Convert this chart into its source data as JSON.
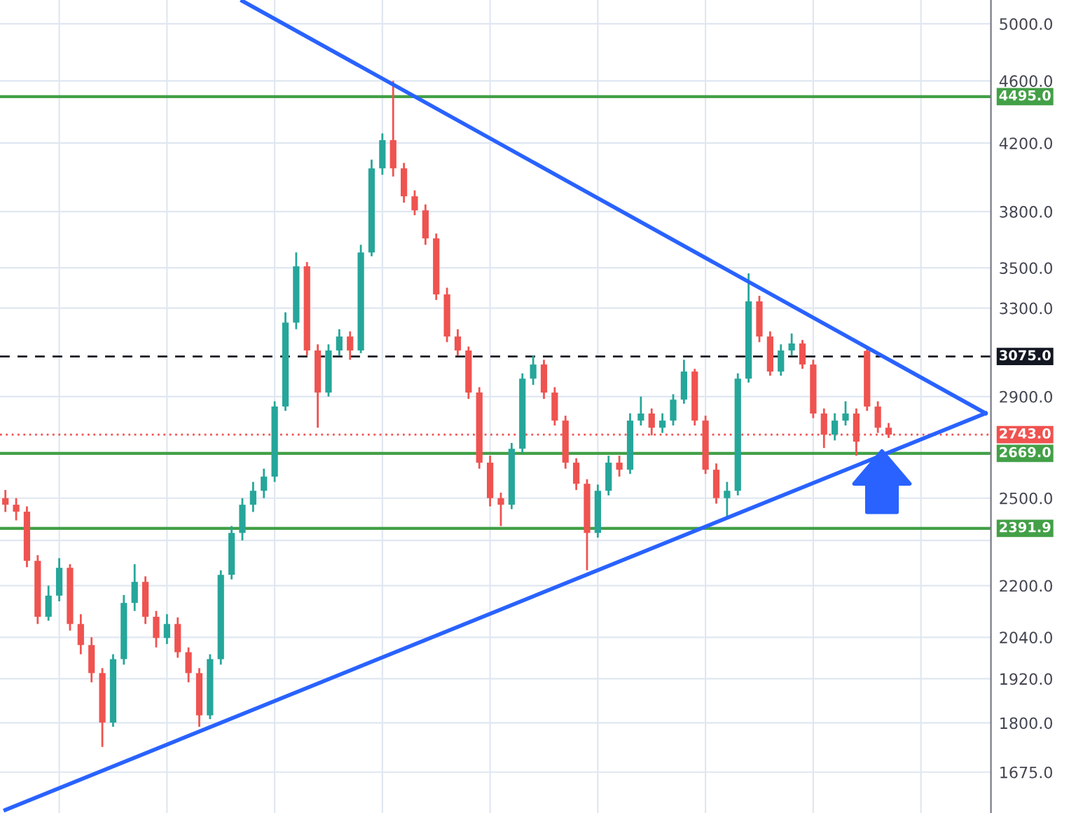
{
  "chart_data": {
    "type": "candlestick",
    "categories": [
      null,
      null,
      null,
      null,
      null,
      null,
      null,
      null,
      null,
      null,
      null,
      null,
      null,
      null,
      null,
      null,
      null,
      null,
      null,
      null,
      null,
      null,
      null,
      null,
      null,
      null,
      null,
      null,
      null,
      null,
      null,
      null,
      null,
      null,
      null,
      null,
      null,
      null,
      null,
      null,
      null,
      null,
      null,
      null,
      null,
      null,
      null,
      null,
      null,
      null,
      null,
      null,
      null,
      null,
      null,
      null,
      null,
      null,
      null,
      null,
      null,
      null,
      null,
      null,
      null,
      null,
      null,
      null,
      null,
      null,
      null,
      null,
      null,
      null,
      null,
      null,
      null,
      null,
      null,
      null,
      null,
      null,
      null,
      null,
      null,
      null,
      null,
      null,
      null,
      null,
      null,
      null
    ],
    "ohlc": [
      [
        2500,
        2530,
        2450,
        2476
      ],
      [
        2476,
        2500,
        2420,
        2451
      ],
      [
        2451,
        2470,
        2260,
        2281
      ],
      [
        2281,
        2300,
        2080,
        2102
      ],
      [
        2102,
        2200,
        2090,
        2168
      ],
      [
        2168,
        2290,
        2150,
        2258
      ],
      [
        2258,
        2270,
        2060,
        2080
      ],
      [
        2080,
        2110,
        1990,
        2017
      ],
      [
        2017,
        2040,
        1910,
        1936
      ],
      [
        1936,
        1950,
        1738,
        1801
      ],
      [
        1801,
        1990,
        1790,
        1976
      ],
      [
        1976,
        2170,
        1960,
        2145
      ],
      [
        2145,
        2270,
        2120,
        2212
      ],
      [
        2212,
        2230,
        2080,
        2102
      ],
      [
        2102,
        2120,
        2010,
        2038
      ],
      [
        2038,
        2110,
        2020,
        2080
      ],
      [
        2080,
        2100,
        1980,
        1996
      ],
      [
        1996,
        2010,
        1910,
        1936
      ],
      [
        1936,
        1950,
        1790,
        1820
      ],
      [
        1820,
        1990,
        1810,
        1976
      ],
      [
        1976,
        2250,
        1960,
        2235
      ],
      [
        2235,
        2400,
        2220,
        2376
      ],
      [
        2376,
        2500,
        2350,
        2476
      ],
      [
        2476,
        2560,
        2450,
        2527
      ],
      [
        2527,
        2610,
        2500,
        2580
      ],
      [
        2580,
        2880,
        2560,
        2858
      ],
      [
        2858,
        3280,
        2840,
        3231
      ],
      [
        3231,
        3580,
        3200,
        3508
      ],
      [
        3508,
        3530,
        3080,
        3102
      ],
      [
        3102,
        3130,
        2771,
        2917
      ],
      [
        2917,
        3130,
        2900,
        3102
      ],
      [
        3102,
        3200,
        3080,
        3166
      ],
      [
        3166,
        3190,
        3060,
        3102
      ],
      [
        3102,
        3620,
        3090,
        3580
      ],
      [
        3580,
        4100,
        3560,
        4048
      ],
      [
        4048,
        4260,
        4010,
        4218
      ],
      [
        4218,
        4600,
        4000,
        4048
      ],
      [
        4048,
        4080,
        3850,
        3886
      ],
      [
        3886,
        3920,
        3780,
        3807
      ],
      [
        3807,
        3840,
        3620,
        3654
      ],
      [
        3654,
        3680,
        3340,
        3367
      ],
      [
        3367,
        3400,
        3140,
        3166
      ],
      [
        3166,
        3200,
        3080,
        3102
      ],
      [
        3102,
        3120,
        2890,
        2917
      ],
      [
        2917,
        2940,
        2610,
        2633
      ],
      [
        2633,
        2660,
        2470,
        2500
      ],
      [
        2500,
        2520,
        2400,
        2476
      ],
      [
        2476,
        2710,
        2460,
        2687
      ],
      [
        2687,
        3000,
        2670,
        2977
      ],
      [
        2977,
        3080,
        2950,
        3039
      ],
      [
        3039,
        3060,
        2890,
        2917
      ],
      [
        2917,
        2940,
        2780,
        2800
      ],
      [
        2800,
        2820,
        2610,
        2633
      ],
      [
        2633,
        2650,
        2530,
        2553
      ],
      [
        2553,
        2570,
        2250,
        2376
      ],
      [
        2376,
        2550,
        2360,
        2527
      ],
      [
        2527,
        2660,
        2510,
        2633
      ],
      [
        2633,
        2660,
        2580,
        2606
      ],
      [
        2606,
        2830,
        2590,
        2800
      ],
      [
        2800,
        2900,
        2780,
        2829
      ],
      [
        2829,
        2850,
        2740,
        2771
      ],
      [
        2771,
        2830,
        2750,
        2800
      ],
      [
        2800,
        2910,
        2780,
        2887
      ],
      [
        2887,
        3060,
        2870,
        3008
      ],
      [
        3008,
        3020,
        2780,
        2800
      ],
      [
        2800,
        2820,
        2590,
        2606
      ],
      [
        2606,
        2630,
        2480,
        2500
      ],
      [
        2500,
        2560,
        2426,
        2527
      ],
      [
        2527,
        3000,
        2510,
        2977
      ],
      [
        2977,
        3472,
        2960,
        3333
      ],
      [
        3333,
        3360,
        3140,
        3166
      ],
      [
        3166,
        3190,
        2990,
        3008
      ],
      [
        3008,
        3130,
        2990,
        3102
      ],
      [
        3102,
        3180,
        3080,
        3134
      ],
      [
        3134,
        3150,
        3020,
        3039
      ],
      [
        3039,
        3060,
        2810,
        2829
      ],
      [
        2829,
        2850,
        2690,
        2743
      ],
      [
        2743,
        2830,
        2720,
        2800
      ],
      [
        2800,
        2880,
        2780,
        2829
      ],
      [
        2829,
        2850,
        2660,
        2715
      ],
      [
        3100,
        3122,
        2840,
        2858
      ],
      [
        2858,
        2880,
        2750,
        2771
      ],
      [
        2771,
        2790,
        2730,
        2743
      ],
      null,
      null,
      null,
      null,
      null,
      null,
      null,
      null,
      null
    ],
    "colors": [
      "#ef5350",
      "#ef5350",
      "#ef5350",
      "#ef5350",
      "#26a69a",
      "#26a69a",
      "#ef5350",
      "#ef5350",
      "#ef5350",
      "#ef5350",
      "#26a69a",
      "#26a69a",
      "#26a69a",
      "#ef5350",
      "#ef5350",
      "#26a69a",
      "#ef5350",
      "#ef5350",
      "#ef5350",
      "#26a69a",
      "#26a69a",
      "#26a69a",
      "#26a69a",
      "#26a69a",
      "#26a69a",
      "#26a69a",
      "#26a69a",
      "#26a69a",
      "#ef5350",
      "#ef5350",
      "#26a69a",
      "#26a69a",
      "#ef5350",
      "#26a69a",
      "#26a69a",
      "#26a69a",
      "#ef5350",
      "#ef5350",
      "#ef5350",
      "#ef5350",
      "#ef5350",
      "#ef5350",
      "#ef5350",
      "#ef5350",
      "#ef5350",
      "#ef5350",
      "#ef5350",
      "#26a69a",
      "#26a69a",
      "#26a69a",
      "#ef5350",
      "#ef5350",
      "#ef5350",
      "#ef5350",
      "#ef5350",
      "#26a69a",
      "#26a69a",
      "#ef5350",
      "#26a69a",
      "#26a69a",
      "#ef5350",
      "#26a69a",
      "#26a69a",
      "#26a69a",
      "#ef5350",
      "#ef5350",
      "#ef5350",
      "#26a69a",
      "#26a69a",
      "#26a69a",
      "#ef5350",
      "#ef5350",
      "#26a69a",
      "#26a69a",
      "#ef5350",
      "#ef5350",
      "#ef5350",
      "#26a69a",
      "#26a69a",
      "#ef5350",
      "#ef5350",
      "#ef5350",
      "#ef5350",
      null,
      null,
      null,
      null,
      null,
      null,
      null,
      null,
      null
    ],
    "series": [
      {
        "type": "line",
        "color": "#2962ff",
        "values": [
          null,
          null,
          null,
          null,
          null,
          null,
          null,
          null,
          null,
          null,
          null,
          null,
          null,
          null,
          null,
          null,
          null,
          null,
          null,
          null,
          null,
          null,
          5170,
          null,
          null,
          null,
          null,
          null,
          null,
          null,
          null,
          null,
          null,
          null,
          null,
          null,
          null,
          null,
          null,
          null,
          null,
          null,
          null,
          null,
          null,
          null,
          null,
          null,
          null,
          null,
          null,
          null,
          null,
          null,
          null,
          null,
          null,
          null,
          null,
          null,
          null,
          null,
          null,
          null,
          null,
          null,
          null,
          null,
          null,
          null,
          null,
          null,
          null,
          null,
          null,
          null,
          null,
          null,
          null,
          null,
          null,
          null,
          null,
          null,
          null,
          null,
          null,
          null,
          null,
          null,
          null,
          2830
        ]
      },
      {
        "type": "line",
        "color": "#2962ff",
        "values": [
          1585,
          null,
          null,
          null,
          null,
          null,
          null,
          null,
          null,
          null,
          null,
          null,
          null,
          null,
          null,
          null,
          null,
          null,
          null,
          null,
          null,
          null,
          null,
          null,
          null,
          null,
          null,
          null,
          null,
          null,
          null,
          null,
          null,
          null,
          null,
          null,
          null,
          null,
          null,
          null,
          null,
          null,
          null,
          null,
          null,
          null,
          null,
          null,
          null,
          null,
          null,
          null,
          null,
          null,
          null,
          null,
          null,
          null,
          null,
          null,
          null,
          null,
          null,
          null,
          null,
          null,
          null,
          null,
          null,
          null,
          null,
          null,
          null,
          null,
          null,
          null,
          null,
          null,
          null,
          null,
          null,
          null,
          null,
          null,
          null,
          null,
          null,
          null,
          null,
          null,
          null,
          2830
        ]
      }
    ],
    "ref_lines": [
      {
        "axis": "y",
        "value": 4495,
        "label": "4495.0",
        "color": "#43a047",
        "line_style": "solid"
      },
      {
        "axis": "y",
        "value": 3075,
        "label": "3075.0",
        "color": "#131722",
        "line_style": "dashed"
      },
      {
        "axis": "y",
        "value": 2743,
        "label": "2743.0",
        "color": "#ef5350",
        "line_style": "dotted"
      },
      {
        "axis": "y",
        "value": 2669,
        "label": "2669.0",
        "color": "#43a047",
        "line_style": "solid"
      },
      {
        "axis": "y",
        "value": 2391.9,
        "label": "2391.9",
        "color": "#43a047",
        "line_style": "solid"
      }
    ],
    "log": true,
    "ylim": [
      1578,
      5177
    ],
    "yticks": [
      {
        "value": 1675,
        "label": "1675.0"
      },
      {
        "value": 1800,
        "label": "1800.0"
      },
      {
        "value": 1920,
        "label": "1920.0"
      },
      {
        "value": 2040,
        "label": "2040.0"
      },
      {
        "value": 2200,
        "label": "2200.0"
      },
      {
        "value": 2350,
        "label": null
      },
      {
        "value": 2500,
        "label": "2500.0"
      },
      {
        "value": 2900,
        "label": "2900.0"
      },
      {
        "value": 3300,
        "label": "3300.0"
      },
      {
        "value": 3500,
        "label": "3500.0"
      },
      {
        "value": 3800,
        "label": "3800.0"
      },
      {
        "value": 4200,
        "label": "4200.0"
      },
      {
        "value": 4600,
        "label": "4600.0"
      },
      {
        "value": 5000,
        "label": "5000.0"
      }
    ],
    "grid": true,
    "tick_labels": "y"
  }
}
